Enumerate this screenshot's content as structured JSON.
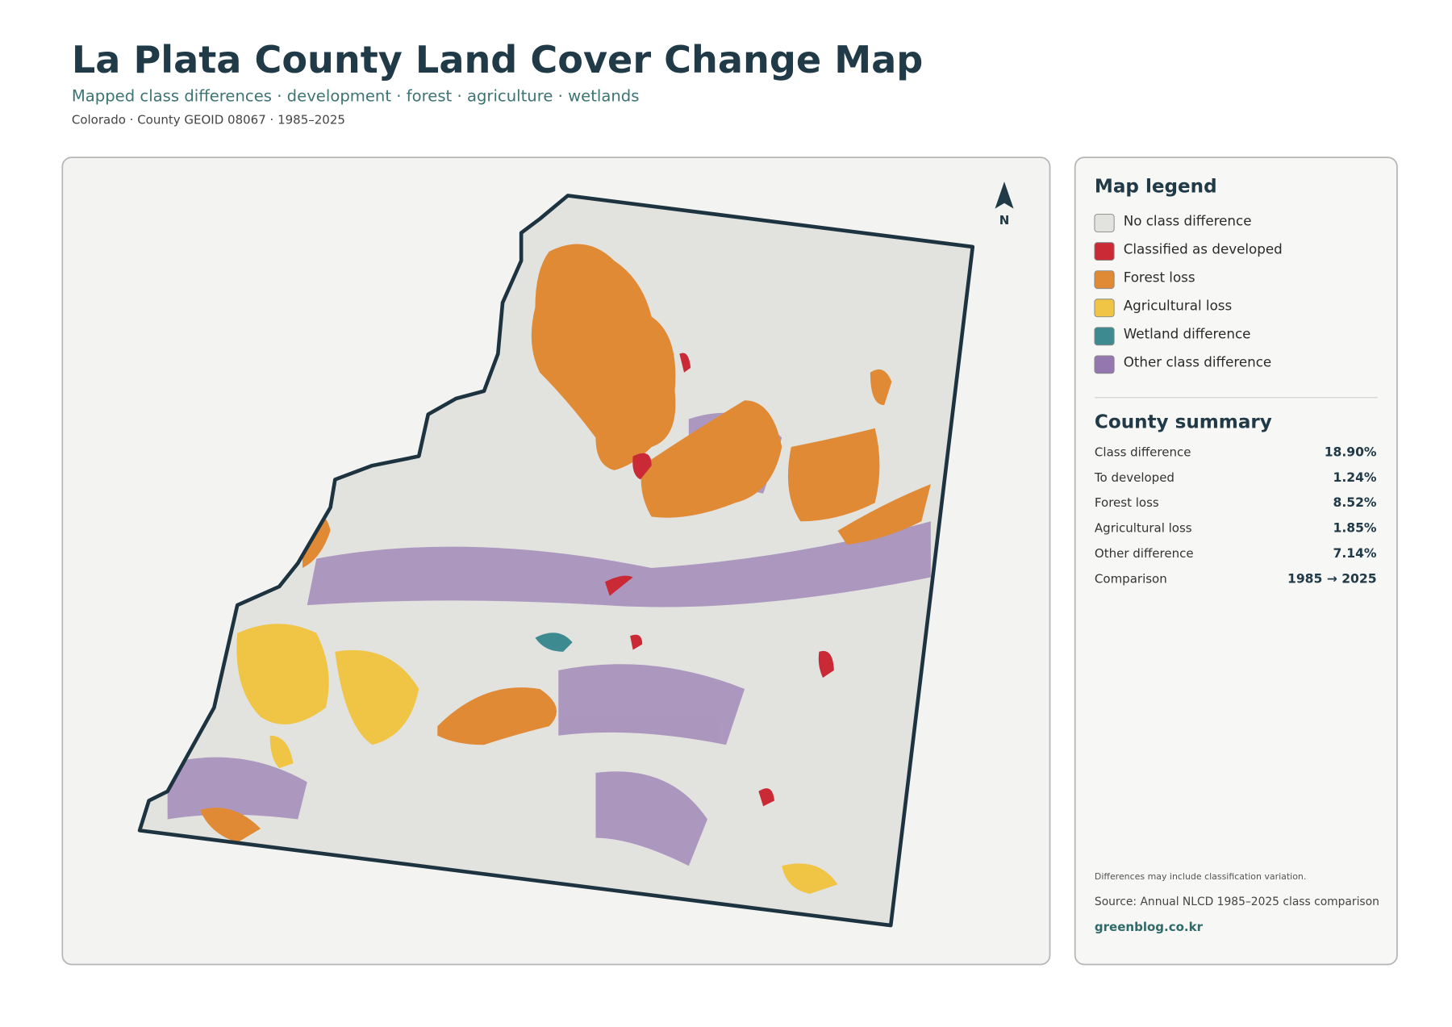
{
  "header": {
    "title": "La Plata County Land Cover Change Map",
    "subtitle": "Mapped class differences · development · forest · agriculture · wetlands",
    "meta": "Colorado · County GEOID 08067 · 1985–2025"
  },
  "map": {
    "north_label": "N"
  },
  "legend": {
    "title": "Map legend",
    "items": [
      {
        "label": "No class difference",
        "color": "#e2e2df"
      },
      {
        "label": "Classified as developed",
        "color": "#c92a35"
      },
      {
        "label": "Forest loss",
        "color": "#e08a35"
      },
      {
        "label": "Agricultural loss",
        "color": "#f0c445"
      },
      {
        "label": "Wetland difference",
        "color": "#3d8a90"
      },
      {
        "label": "Other class difference",
        "color": "#9577b0"
      }
    ]
  },
  "summary": {
    "title": "County summary",
    "rows": [
      {
        "label": "Class difference",
        "value": "18.90%"
      },
      {
        "label": "To developed",
        "value": "1.24%"
      },
      {
        "label": "Forest loss",
        "value": "8.52%"
      },
      {
        "label": "Agricultural loss",
        "value": "1.85%"
      },
      {
        "label": "Other difference",
        "value": "7.14%"
      },
      {
        "label": "Comparison",
        "value": "1985 → 2025"
      }
    ]
  },
  "notes": {
    "caveat": "Differences may include classification variation.",
    "source": "Source: Annual NLCD 1985–2025 class comparison",
    "site": "greenblog.co.kr"
  }
}
